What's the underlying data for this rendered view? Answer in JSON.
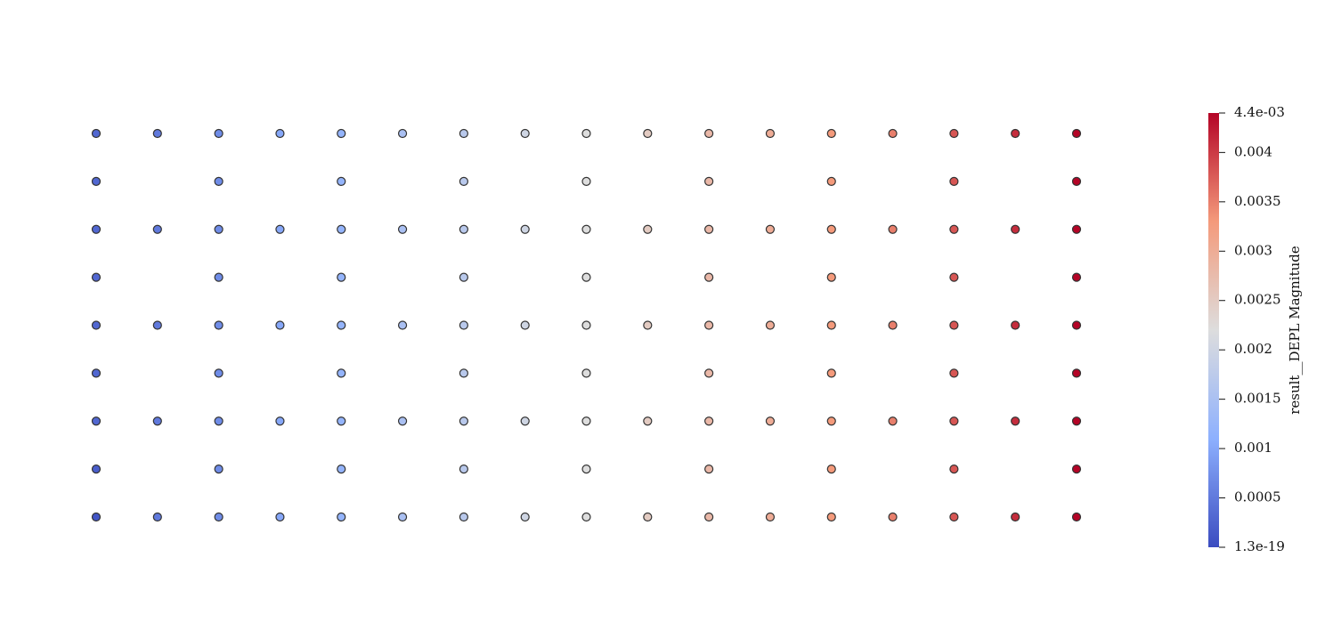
{
  "chart_data": {
    "type": "scatter",
    "rows": [
      {
        "y": 8,
        "x": [
          0,
          1,
          2,
          3,
          4,
          5,
          6,
          7,
          8,
          9,
          10,
          11,
          12,
          13,
          14,
          15,
          16
        ],
        "values": [
          0.0003,
          0.0005,
          0.0007,
          0.001,
          0.0012,
          0.0015,
          0.0017,
          0.002,
          0.0022,
          0.0025,
          0.0028,
          0.003,
          0.0033,
          0.0035,
          0.0038,
          0.0041,
          0.0044
        ]
      },
      {
        "y": 7,
        "x": [
          0,
          2,
          4,
          6,
          8,
          10,
          12,
          14,
          16
        ],
        "values": [
          0.0003,
          0.0007,
          0.0012,
          0.0017,
          0.0022,
          0.0028,
          0.0033,
          0.0038,
          0.0044
        ]
      },
      {
        "y": 6,
        "x": [
          0,
          1,
          2,
          3,
          4,
          5,
          6,
          7,
          8,
          9,
          10,
          11,
          12,
          13,
          14,
          15,
          16
        ],
        "values": [
          0.0003,
          0.0005,
          0.0007,
          0.001,
          0.0012,
          0.0015,
          0.0017,
          0.002,
          0.0022,
          0.0025,
          0.0028,
          0.003,
          0.0033,
          0.0035,
          0.0038,
          0.0041,
          0.0044
        ]
      },
      {
        "y": 5,
        "x": [
          0,
          2,
          4,
          6,
          8,
          10,
          12,
          14,
          16
        ],
        "values": [
          0.0003,
          0.0007,
          0.0012,
          0.0017,
          0.0022,
          0.0028,
          0.0033,
          0.0038,
          0.0044
        ]
      },
      {
        "y": 4,
        "x": [
          0,
          1,
          2,
          3,
          4,
          5,
          6,
          7,
          8,
          9,
          10,
          11,
          12,
          13,
          14,
          15,
          16
        ],
        "values": [
          0.0003,
          0.0005,
          0.0007,
          0.001,
          0.0012,
          0.0015,
          0.0017,
          0.002,
          0.0022,
          0.0025,
          0.0028,
          0.003,
          0.0033,
          0.0035,
          0.0038,
          0.0041,
          0.0044
        ]
      },
      {
        "y": 3,
        "x": [
          0,
          2,
          4,
          6,
          8,
          10,
          12,
          14,
          16
        ],
        "values": [
          0.0003,
          0.0007,
          0.0012,
          0.0017,
          0.0022,
          0.0028,
          0.0033,
          0.0038,
          0.0044
        ]
      },
      {
        "y": 2,
        "x": [
          0,
          1,
          2,
          3,
          4,
          5,
          6,
          7,
          8,
          9,
          10,
          11,
          12,
          13,
          14,
          15,
          16
        ],
        "values": [
          0.0003,
          0.0005,
          0.0007,
          0.001,
          0.0012,
          0.0015,
          0.0017,
          0.002,
          0.0022,
          0.0025,
          0.0028,
          0.003,
          0.0033,
          0.0035,
          0.0038,
          0.0041,
          0.0044
        ]
      },
      {
        "y": 1,
        "x": [
          0,
          2,
          4,
          6,
          8,
          10,
          12,
          14,
          16
        ],
        "values": [
          0.0002,
          0.0007,
          0.0012,
          0.0017,
          0.0022,
          0.0028,
          0.0033,
          0.0038,
          0.0044
        ]
      },
      {
        "y": 0,
        "x": [
          0,
          1,
          2,
          3,
          4,
          5,
          6,
          7,
          8,
          9,
          10,
          11,
          12,
          13,
          14,
          15,
          16
        ],
        "values": [
          0.0001,
          0.0005,
          0.0007,
          0.001,
          0.0012,
          0.0015,
          0.0017,
          0.002,
          0.0022,
          0.0025,
          0.0028,
          0.003,
          0.0033,
          0.0035,
          0.0038,
          0.0041,
          0.0044
        ]
      }
    ],
    "xlim": [
      0,
      16
    ],
    "ylim": [
      0,
      8
    ],
    "colorbar": {
      "label": "result__DEPL Magnitude",
      "clim": [
        1.3e-19,
        0.0044
      ],
      "ticks": [
        {
          "value": 1.3e-19,
          "label": "1.3e-19"
        },
        0.0005,
        0.001,
        0.0015,
        0.002,
        0.0025,
        0.003,
        0.0035,
        0.004,
        {
          "value": 0.0044,
          "label": "4.4e-03"
        }
      ],
      "colormap": [
        "#3b4cc0",
        "#8db0fe",
        "#dddddd",
        "#f49a7b",
        "#b40426"
      ]
    }
  }
}
